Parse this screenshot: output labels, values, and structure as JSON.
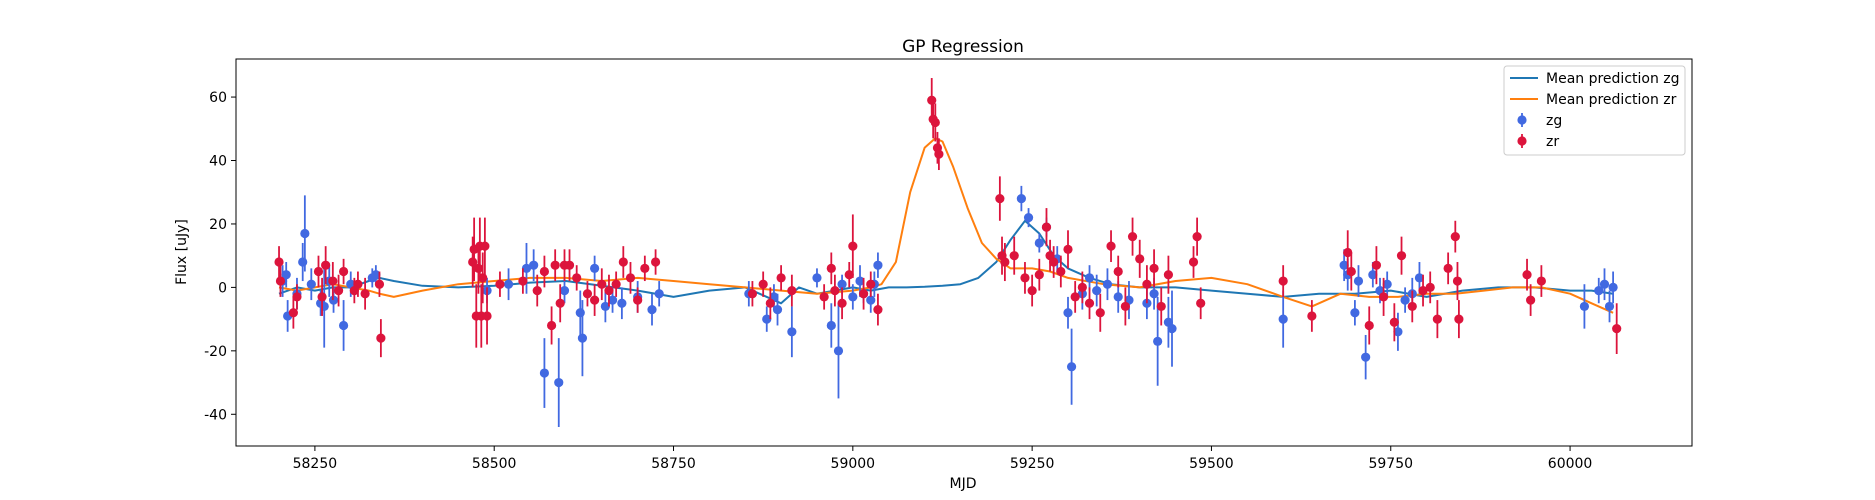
{
  "chart_data": {
    "type": "scatter",
    "title": "GP Regression",
    "xlabel": "MJD",
    "ylabel": "Flux [uJy]",
    "xlim": [
      58140,
      60170
    ],
    "ylim": [
      -50,
      72
    ],
    "xticks": [
      58250,
      58500,
      58750,
      59000,
      59250,
      59500,
      59750,
      60000
    ],
    "yticks": [
      -40,
      -20,
      0,
      20,
      40,
      60
    ],
    "grid": false,
    "legend_position": "top-right",
    "legend": [
      "Mean prediction zg",
      "Mean prediction zr",
      "zg",
      "zr"
    ],
    "colors": {
      "mean_zg": "#1f77b4",
      "mean_zr": "#ff7f0e",
      "zg": "#4169e1",
      "zr": "#dc143c"
    },
    "lines": [
      {
        "name": "Mean prediction zg",
        "x": [
          58200,
          58225,
          58250,
          58275,
          58300,
          58325,
          58340,
          58360,
          58400,
          58450,
          58500,
          58550,
          58600,
          58650,
          58700,
          58750,
          58800,
          58850,
          58880,
          58900,
          58925,
          58950,
          58975,
          59000,
          59025,
          59050,
          59075,
          59100,
          59125,
          59150,
          59175,
          59200,
          59220,
          59240,
          59260,
          59280,
          59300,
          59330,
          59360,
          59400,
          59450,
          59500,
          59550,
          59600,
          59650,
          59700,
          59750,
          59800,
          59850,
          59900,
          59950,
          60000,
          60030,
          60060
        ],
        "y": [
          -2,
          0,
          -1,
          0,
          0,
          2,
          3,
          2,
          0.5,
          0,
          0.5,
          1.5,
          2,
          0.5,
          -1,
          -3,
          -1,
          0,
          -3,
          -5,
          0,
          -2,
          -1,
          0,
          -1,
          0,
          0,
          0.2,
          0.5,
          1,
          3,
          8,
          15,
          21,
          17,
          10,
          6,
          3,
          1,
          0,
          0,
          -1,
          -2,
          -3,
          -2,
          -2,
          -1,
          -3,
          -1,
          0,
          0,
          -1,
          -1,
          -2
        ]
      },
      {
        "name": "Mean prediction zr",
        "x": [
          58200,
          58225,
          58250,
          58275,
          58300,
          58325,
          58340,
          58360,
          58400,
          58450,
          58500,
          58550,
          58600,
          58650,
          58700,
          58750,
          58800,
          58850,
          58900,
          58950,
          59000,
          59025,
          59040,
          59060,
          59080,
          59100,
          59115,
          59125,
          59140,
          59160,
          59180,
          59200,
          59220,
          59250,
          59275,
          59300,
          59350,
          59400,
          59450,
          59500,
          59550,
          59600,
          59640,
          59680,
          59720,
          59760,
          59800,
          59840,
          59880,
          59920,
          59960,
          60000,
          60030,
          60060
        ],
        "y": [
          0,
          -1,
          0,
          1,
          0,
          -1,
          -2,
          -3,
          -1,
          1,
          2,
          3,
          3,
          2,
          3,
          2,
          1,
          0,
          -1,
          -2,
          -1,
          0,
          1,
          8,
          30,
          44,
          47,
          46,
          38,
          25,
          14,
          9,
          6,
          6,
          5,
          3,
          1,
          0,
          2,
          3,
          1,
          -3,
          -6,
          -2,
          -3,
          -3,
          -2,
          -2,
          -1,
          0,
          0,
          -2,
          -5,
          -8
        ]
      }
    ],
    "series": [
      {
        "name": "zg",
        "points": [
          [
            58205,
            2,
            5
          ],
          [
            58210,
            4,
            4
          ],
          [
            58212,
            -9,
            5
          ],
          [
            58225,
            -2,
            5
          ],
          [
            58233,
            8,
            6
          ],
          [
            58236,
            17,
            12
          ],
          [
            58245,
            1,
            5
          ],
          [
            58258,
            -5,
            4
          ],
          [
            58263,
            -6,
            13
          ],
          [
            58270,
            2,
            5
          ],
          [
            58276,
            -4,
            4
          ],
          [
            58290,
            -12,
            8
          ],
          [
            58300,
            1,
            4
          ],
          [
            58330,
            3,
            3
          ],
          [
            58335,
            4,
            3
          ],
          [
            58490,
            -1,
            4
          ],
          [
            58520,
            1,
            5
          ],
          [
            58545,
            6,
            8
          ],
          [
            58555,
            7,
            5
          ],
          [
            58570,
            -27,
            11
          ],
          [
            58590,
            -30,
            14
          ],
          [
            58598,
            -1,
            4
          ],
          [
            58620,
            -8,
            7
          ],
          [
            58623,
            -16,
            12
          ],
          [
            58640,
            6,
            4
          ],
          [
            58655,
            -6,
            5
          ],
          [
            58665,
            -4,
            4
          ],
          [
            58678,
            -5,
            5
          ],
          [
            58700,
            -3,
            5
          ],
          [
            58720,
            -7,
            5
          ],
          [
            58730,
            -2,
            4
          ],
          [
            58855,
            -2,
            4
          ],
          [
            58880,
            -10,
            4
          ],
          [
            58890,
            -3,
            4
          ],
          [
            58895,
            -7,
            5
          ],
          [
            58915,
            -14,
            8
          ],
          [
            58950,
            3,
            3
          ],
          [
            58970,
            -12,
            7
          ],
          [
            58980,
            -20,
            15
          ],
          [
            58985,
            1,
            3
          ],
          [
            59000,
            -3,
            4
          ],
          [
            59010,
            2,
            5
          ],
          [
            59015,
            -2,
            3
          ],
          [
            59025,
            -4,
            4
          ],
          [
            59030,
            1,
            4
          ],
          [
            59035,
            7,
            4
          ],
          [
            59235,
            28,
            4
          ],
          [
            59245,
            22,
            3
          ],
          [
            59260,
            14,
            3
          ],
          [
            59270,
            19,
            3
          ],
          [
            59285,
            9,
            4
          ],
          [
            59300,
            -8,
            5
          ],
          [
            59305,
            -25,
            12
          ],
          [
            59320,
            -2,
            5
          ],
          [
            59330,
            3,
            4
          ],
          [
            59340,
            -1,
            5
          ],
          [
            59355,
            1,
            5
          ],
          [
            59370,
            -3,
            5
          ],
          [
            59385,
            -4,
            6
          ],
          [
            59410,
            -5,
            5
          ],
          [
            59420,
            -2,
            5
          ],
          [
            59425,
            -17,
            14
          ],
          [
            59440,
            -11,
            8
          ],
          [
            59445,
            -13,
            12
          ],
          [
            59600,
            -10,
            9
          ],
          [
            59685,
            7,
            5
          ],
          [
            59690,
            4,
            5
          ],
          [
            59700,
            -8,
            4
          ],
          [
            59705,
            2,
            5
          ],
          [
            59715,
            -22,
            7
          ],
          [
            59725,
            4,
            4
          ],
          [
            59735,
            -1,
            4
          ],
          [
            59745,
            1,
            4
          ],
          [
            59760,
            -14,
            6
          ],
          [
            59770,
            -4,
            4
          ],
          [
            59780,
            -2,
            5
          ],
          [
            59790,
            3,
            5
          ],
          [
            60020,
            -6,
            7
          ],
          [
            60040,
            -1,
            4
          ],
          [
            60048,
            1,
            5
          ],
          [
            60055,
            -6,
            5
          ],
          [
            60060,
            0,
            5
          ]
        ]
      },
      {
        "name": "zr",
        "points": [
          [
            58200,
            8,
            5
          ],
          [
            58202,
            2,
            5
          ],
          [
            58220,
            -8,
            5
          ],
          [
            58225,
            -3,
            4
          ],
          [
            58255,
            5,
            5
          ],
          [
            58260,
            -3,
            6
          ],
          [
            58265,
            7,
            6
          ],
          [
            58275,
            2,
            6
          ],
          [
            58283,
            -1,
            5
          ],
          [
            58290,
            5,
            4
          ],
          [
            58305,
            -1,
            4
          ],
          [
            58310,
            1,
            4
          ],
          [
            58320,
            -2,
            5
          ],
          [
            58340,
            1,
            4
          ],
          [
            58342,
            -16,
            6
          ],
          [
            58470,
            8,
            8
          ],
          [
            58472,
            12,
            10
          ],
          [
            58475,
            -9,
            10
          ],
          [
            58478,
            6,
            8
          ],
          [
            58480,
            13,
            9
          ],
          [
            58482,
            -9,
            10
          ],
          [
            58484,
            3,
            8
          ],
          [
            58487,
            13,
            9
          ],
          [
            58490,
            -9,
            9
          ],
          [
            58508,
            1,
            4
          ],
          [
            58540,
            2,
            4
          ],
          [
            58560,
            -1,
            5
          ],
          [
            58570,
            5,
            5
          ],
          [
            58580,
            -12,
            6
          ],
          [
            58585,
            7,
            5
          ],
          [
            58592,
            -5,
            6
          ],
          [
            58598,
            7,
            5
          ],
          [
            58605,
            7,
            5
          ],
          [
            58615,
            3,
            4
          ],
          [
            58630,
            -2,
            4
          ],
          [
            58640,
            -4,
            5
          ],
          [
            58650,
            1,
            5
          ],
          [
            58660,
            -1,
            5
          ],
          [
            58670,
            1,
            4
          ],
          [
            58680,
            8,
            5
          ],
          [
            58690,
            3,
            5
          ],
          [
            58700,
            -4,
            4
          ],
          [
            58710,
            6,
            4
          ],
          [
            58725,
            8,
            4
          ],
          [
            58860,
            -2,
            4
          ],
          [
            58875,
            1,
            4
          ],
          [
            58885,
            -5,
            5
          ],
          [
            58900,
            3,
            4
          ],
          [
            58915,
            -1,
            5
          ],
          [
            58960,
            -3,
            4
          ],
          [
            58970,
            6,
            5
          ],
          [
            58975,
            -1,
            5
          ],
          [
            58985,
            -5,
            5
          ],
          [
            58995,
            4,
            4
          ],
          [
            59000,
            13,
            10
          ],
          [
            59015,
            -2,
            5
          ],
          [
            59025,
            1,
            4
          ],
          [
            59035,
            -7,
            5
          ],
          [
            59110,
            59,
            7
          ],
          [
            59112,
            53,
            6
          ],
          [
            59115,
            52,
            6
          ],
          [
            59118,
            44,
            5
          ],
          [
            59120,
            42,
            5
          ],
          [
            59205,
            28,
            7
          ],
          [
            59208,
            10,
            6
          ],
          [
            59212,
            8,
            6
          ],
          [
            59225,
            10,
            6
          ],
          [
            59240,
            3,
            5
          ],
          [
            59250,
            -1,
            5
          ],
          [
            59260,
            4,
            5
          ],
          [
            59270,
            19,
            6
          ],
          [
            59275,
            10,
            5
          ],
          [
            59280,
            8,
            5
          ],
          [
            59290,
            5,
            5
          ],
          [
            59300,
            12,
            6
          ],
          [
            59310,
            -3,
            5
          ],
          [
            59320,
            0,
            5
          ],
          [
            59330,
            -5,
            5
          ],
          [
            59345,
            -8,
            6
          ],
          [
            59360,
            13,
            5
          ],
          [
            59370,
            5,
            5
          ],
          [
            59380,
            -6,
            6
          ],
          [
            59390,
            16,
            6
          ],
          [
            59400,
            9,
            6
          ],
          [
            59410,
            1,
            6
          ],
          [
            59420,
            6,
            6
          ],
          [
            59430,
            -6,
            6
          ],
          [
            59440,
            4,
            6
          ],
          [
            59475,
            8,
            5
          ],
          [
            59480,
            16,
            6
          ],
          [
            59485,
            -5,
            5
          ],
          [
            59600,
            2,
            5
          ],
          [
            59640,
            -9,
            5
          ],
          [
            59690,
            11,
            7
          ],
          [
            59695,
            5,
            6
          ],
          [
            59720,
            -12,
            6
          ],
          [
            59730,
            7,
            6
          ],
          [
            59740,
            -3,
            6
          ],
          [
            59755,
            -11,
            6
          ],
          [
            59765,
            10,
            6
          ],
          [
            59780,
            -6,
            5
          ],
          [
            59795,
            -1,
            5
          ],
          [
            59805,
            0,
            5
          ],
          [
            59815,
            -10,
            6
          ],
          [
            59830,
            6,
            5
          ],
          [
            59840,
            16,
            5
          ],
          [
            59843,
            2,
            6
          ],
          [
            59845,
            -10,
            6
          ],
          [
            59940,
            4,
            5
          ],
          [
            59945,
            -4,
            5
          ],
          [
            59960,
            2,
            5
          ],
          [
            60065,
            -13,
            8
          ]
        ]
      }
    ]
  }
}
